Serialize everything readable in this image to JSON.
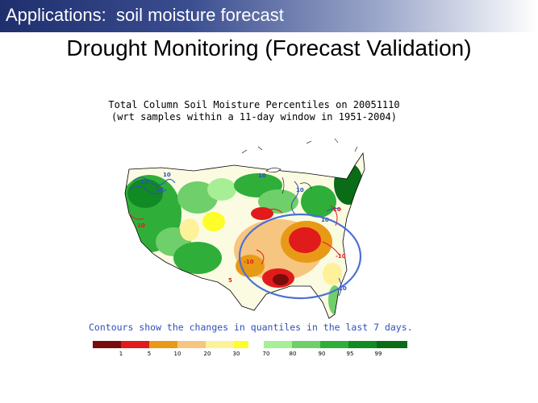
{
  "header": {
    "title": "Applications:  soil moisture forecast"
  },
  "slide": {
    "title": "Drought Monitoring (Forecast Validation)"
  },
  "map": {
    "title_line1": "Total Column Soil Moisture Percentiles on 20051110",
    "title_line2": "(wrt samples within a 11-day window in 1951-2004)",
    "caption": "Contours show the changes in quantiles in the last 7 days.",
    "contour_labels": [
      "10",
      "10",
      "-10",
      "10",
      "10",
      "10",
      "10",
      "10",
      "-10",
      "-10",
      "10",
      "-10",
      "5"
    ]
  },
  "legend": {
    "dry": [
      {
        "color": "#7a0c0c"
      },
      {
        "color": "#e11b1b",
        "label": "1"
      },
      {
        "color": "#e89a16",
        "label": "5"
      },
      {
        "color": "#f6c580",
        "label": "10"
      },
      {
        "color": "#fdf29a",
        "label": "20"
      },
      {
        "color": "#fdfd2a",
        "label": "30"
      }
    ],
    "wet": [
      {
        "color": "#a6ef95",
        "label": "70"
      },
      {
        "color": "#6fcf6a",
        "label": "80"
      },
      {
        "color": "#2fae3a",
        "label": "90"
      },
      {
        "color": "#108a22",
        "label": "95"
      },
      {
        "color": "#0a6c16",
        "label": "99"
      }
    ]
  }
}
